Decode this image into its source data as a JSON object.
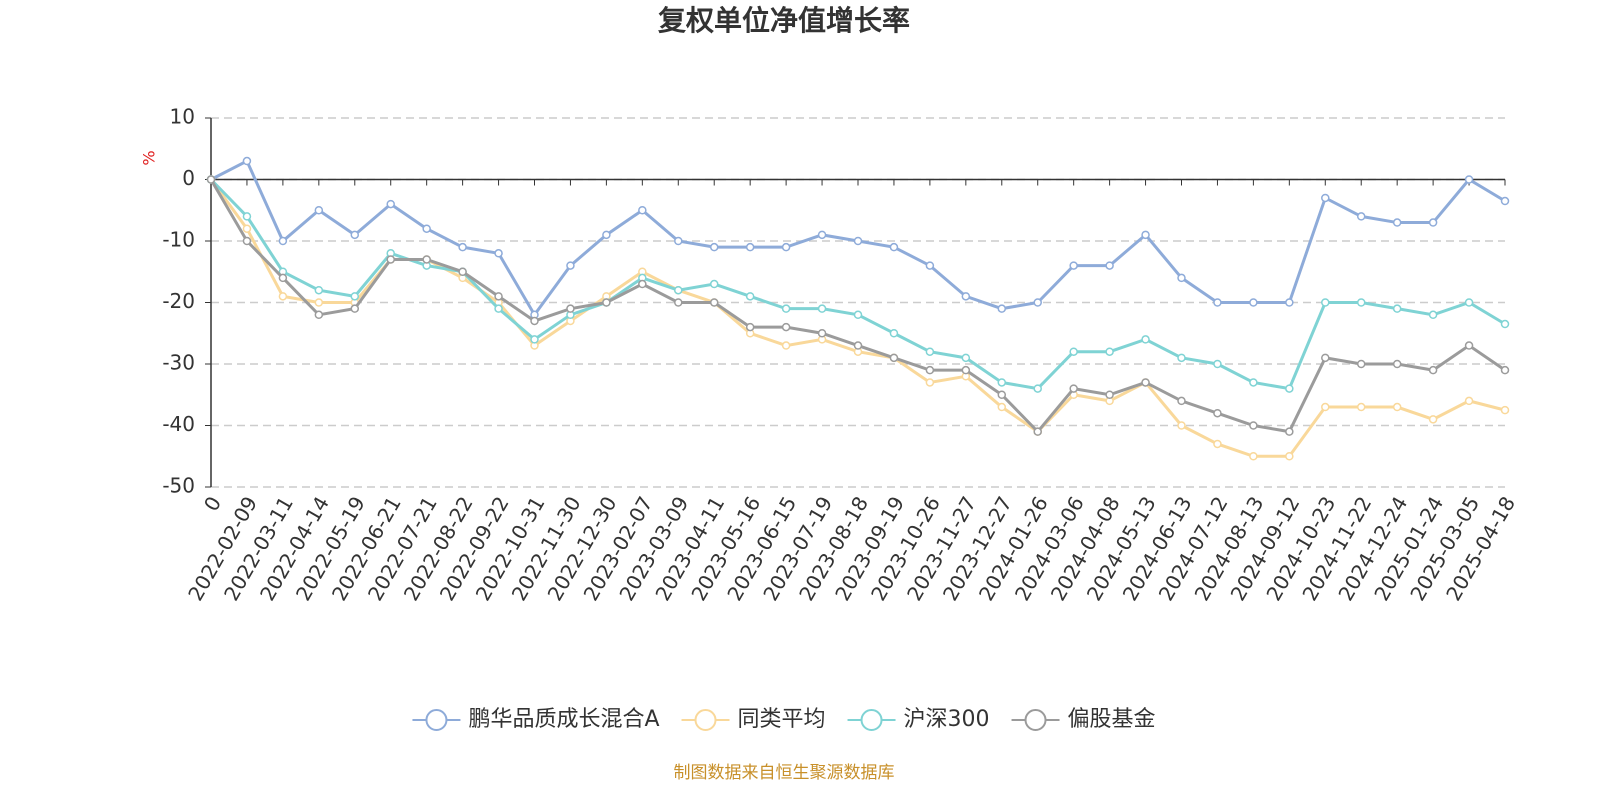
{
  "chart_data": {
    "type": "line",
    "title": "复权单位净值增长率",
    "y_label": "%",
    "footer": "制图数据来自恒生聚源数据库",
    "categories": [
      "0",
      "2022-02-09",
      "2022-03-11",
      "2022-04-14",
      "2022-05-19",
      "2022-06-21",
      "2022-07-21",
      "2022-08-22",
      "2022-09-22",
      "2022-10-31",
      "2022-11-30",
      "2022-12-30",
      "2023-02-07",
      "2023-03-09",
      "2023-04-11",
      "2023-05-16",
      "2023-06-15",
      "2023-07-19",
      "2023-08-18",
      "2023-09-19",
      "2023-10-26",
      "2023-11-27",
      "2023-12-27",
      "2024-01-26",
      "2024-03-06",
      "2024-04-08",
      "2024-05-13",
      "2024-06-13",
      "2024-07-12",
      "2024-08-13",
      "2024-09-12",
      "2024-10-23",
      "2024-11-22",
      "2024-12-24",
      "2025-01-24",
      "2025-03-05",
      "2025-04-18"
    ],
    "series": [
      {
        "name": "鹏华品质成长混合A",
        "color": "#8eabd9",
        "values": [
          0,
          3,
          -10,
          -5,
          -9,
          -4,
          -8,
          -11,
          -12,
          -22,
          -14,
          -9,
          -5,
          -10,
          -11,
          -11,
          -11,
          -9,
          -10,
          -11,
          -14,
          -19,
          -21,
          -20,
          -14,
          -14,
          -9,
          -16,
          -20,
          -20,
          -20,
          -3,
          -6,
          -7,
          -7,
          0,
          -3.5
        ]
      },
      {
        "name": "同类平均",
        "color": "#f9d89a",
        "values": [
          0,
          -8,
          -19,
          -20,
          -20,
          -13,
          -13,
          -16,
          -20,
          -27,
          -23,
          -19,
          -15,
          -18,
          -20,
          -25,
          -27,
          -26,
          -28,
          -29,
          -33,
          -32,
          -37,
          -41,
          -35,
          -36,
          -33,
          -40,
          -43,
          -45,
          -45,
          -37,
          -37,
          -37,
          -39,
          -36,
          -37.5
        ]
      },
      {
        "name": "沪深300",
        "color": "#7fd3d4",
        "values": [
          0,
          -6,
          -15,
          -18,
          -19,
          -12,
          -14,
          -15,
          -21,
          -26,
          -22,
          -20,
          -16,
          -18,
          -17,
          -19,
          -21,
          -21,
          -22,
          -25,
          -28,
          -29,
          -33,
          -34,
          -28,
          -28,
          -26,
          -29,
          -30,
          -33,
          -34,
          -20,
          -20,
          -21,
          -22,
          -20,
          -23.5
        ]
      },
      {
        "name": "偏股基金",
        "color": "#9b9b9b",
        "values": [
          0,
          -10,
          -16,
          -22,
          -21,
          -13,
          -13,
          -15,
          -19,
          -23,
          -21,
          -20,
          -17,
          -20,
          -20,
          -24,
          -24,
          -25,
          -27,
          -29,
          -31,
          -31,
          -35,
          -41,
          -34,
          -35,
          -33,
          -36,
          -38,
          -40,
          -41,
          -29,
          -30,
          -30,
          -31,
          -27,
          -31
        ]
      }
    ],
    "ylim": [
      -50,
      10
    ],
    "yticks": [
      -50,
      -40,
      -30,
      -20,
      -10,
      0,
      10
    ],
    "grid": true
  }
}
